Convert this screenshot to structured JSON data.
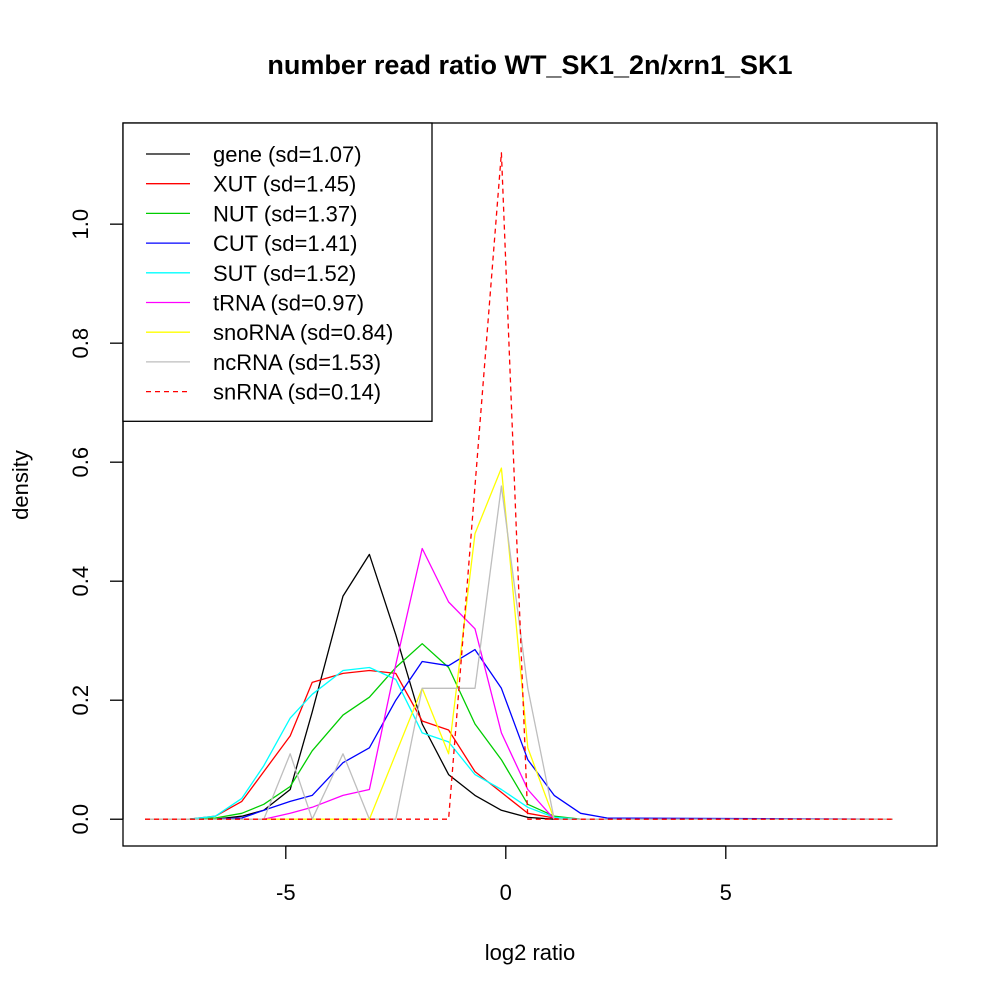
{
  "chart_data": {
    "type": "line",
    "title": "number read ratio WT_SK1_2n/xrn1_SK1",
    "xlabel": "log2 ratio",
    "ylabel": "density",
    "xlim": [
      -8.7,
      9.8
    ],
    "ylim": [
      -0.045,
      1.17
    ],
    "x_ticks": [
      -5,
      0,
      5
    ],
    "x_tick_labels": [
      "-5",
      "0",
      "5"
    ],
    "y_ticks": [
      0,
      0.2,
      0.4,
      0.6,
      0.8,
      1.0
    ],
    "y_tick_labels": [
      "0.0",
      "0.2",
      "0.4",
      "0.6",
      "0.8",
      "1.0"
    ],
    "legend_position": "top-left",
    "grid": false,
    "series": [
      {
        "name": "gene (sd=1.07)",
        "color": "#000000",
        "dash": false,
        "x": [
          -8.2,
          -7.2,
          -6.6,
          -6.0,
          -5.5,
          -4.9,
          -4.4,
          -3.7,
          -3.1,
          -2.5,
          -1.9,
          -1.3,
          -0.7,
          -0.1,
          0.5,
          1.1,
          1.7,
          2.3,
          8.8
        ],
        "y": [
          0,
          0,
          0,
          0.005,
          0.015,
          0.05,
          0.18,
          0.375,
          0.445,
          0.31,
          0.16,
          0.075,
          0.04,
          0.015,
          0.003,
          0,
          0,
          0,
          0
        ]
      },
      {
        "name": "XUT (sd=1.45)",
        "color": "#ff0000",
        "dash": false,
        "x": [
          -8.2,
          -7.2,
          -6.6,
          -6.0,
          -5.5,
          -4.9,
          -4.4,
          -3.7,
          -3.1,
          -2.5,
          -1.9,
          -1.3,
          -0.7,
          -0.1,
          0.5,
          1.1,
          1.7,
          2.3,
          8.8
        ],
        "y": [
          0,
          0,
          0.005,
          0.03,
          0.08,
          0.14,
          0.23,
          0.245,
          0.25,
          0.245,
          0.165,
          0.15,
          0.08,
          0.045,
          0.01,
          0.002,
          0,
          0,
          0
        ]
      },
      {
        "name": "NUT (sd=1.37)",
        "color": "#00cd00",
        "dash": false,
        "x": [
          -8.2,
          -7.2,
          -6.6,
          -6.0,
          -5.5,
          -4.9,
          -4.4,
          -3.7,
          -3.1,
          -2.5,
          -1.9,
          -1.3,
          -0.7,
          -0.1,
          0.5,
          1.1,
          1.7,
          2.3,
          8.8
        ],
        "y": [
          0,
          0,
          0.002,
          0.01,
          0.025,
          0.055,
          0.115,
          0.175,
          0.205,
          0.255,
          0.295,
          0.255,
          0.16,
          0.1,
          0.025,
          0.005,
          0,
          0,
          0
        ]
      },
      {
        "name": "CUT (sd=1.41)",
        "color": "#0000ff",
        "dash": false,
        "x": [
          -8.2,
          -7.2,
          -6.6,
          -6.0,
          -5.5,
          -4.9,
          -4.4,
          -3.7,
          -3.1,
          -2.5,
          -1.9,
          -1.3,
          -0.7,
          -0.1,
          0.5,
          1.1,
          1.7,
          2.3,
          8.8
        ],
        "y": [
          0,
          0,
          0,
          0.002,
          0.015,
          0.03,
          0.04,
          0.095,
          0.12,
          0.2,
          0.265,
          0.258,
          0.285,
          0.22,
          0.1,
          0.04,
          0.01,
          0.002,
          0
        ]
      },
      {
        "name": "SUT (sd=1.52)",
        "color": "#00ffff",
        "dash": false,
        "x": [
          -8.2,
          -7.2,
          -6.6,
          -6.0,
          -5.5,
          -4.9,
          -4.4,
          -3.7,
          -3.1,
          -2.5,
          -1.9,
          -1.3,
          -0.7,
          -0.1,
          0.5,
          1.1,
          1.7,
          2.3,
          8.8
        ],
        "y": [
          0,
          0,
          0.005,
          0.035,
          0.09,
          0.17,
          0.21,
          0.25,
          0.255,
          0.235,
          0.145,
          0.13,
          0.075,
          0.05,
          0.02,
          0.003,
          0,
          0,
          0
        ]
      },
      {
        "name": "tRNA (sd=0.97)",
        "color": "#ff00ff",
        "dash": false,
        "x": [
          -8.2,
          -5.5,
          -4.9,
          -4.4,
          -3.7,
          -3.1,
          -2.5,
          -1.9,
          -1.3,
          -0.7,
          -0.1,
          0.5,
          1.1,
          8.8
        ],
        "y": [
          0,
          0,
          0.01,
          0.02,
          0.04,
          0.05,
          0.26,
          0.455,
          0.365,
          0.32,
          0.145,
          0.05,
          0,
          0
        ]
      },
      {
        "name": "snoRNA (sd=0.84)",
        "color": "#ffff00",
        "dash": false,
        "x": [
          -8.2,
          -3.1,
          -2.5,
          -1.9,
          -1.3,
          -0.7,
          -0.1,
          0.5,
          1.1,
          8.8
        ],
        "y": [
          0,
          0,
          0.11,
          0.22,
          0.11,
          0.48,
          0.59,
          0.12,
          0,
          0
        ]
      },
      {
        "name": "ncRNA (sd=1.53)",
        "color": "#bebebe",
        "dash": false,
        "x": [
          -8.2,
          -5.5,
          -4.9,
          -4.4,
          -3.7,
          -3.1,
          -2.5,
          -1.9,
          -1.3,
          -0.7,
          -0.1,
          0.5,
          1.1,
          8.8
        ],
        "y": [
          0,
          0,
          0.11,
          0,
          0.11,
          0,
          0,
          0.22,
          0.22,
          0.22,
          0.56,
          0.22,
          0,
          0
        ]
      },
      {
        "name": "snRNA (sd=0.14)",
        "color": "#ff0000",
        "dash": true,
        "x": [
          -8.2,
          -1.3,
          -0.1,
          0.5,
          8.8
        ],
        "y": [
          0,
          0,
          1.12,
          0,
          0
        ]
      }
    ]
  }
}
